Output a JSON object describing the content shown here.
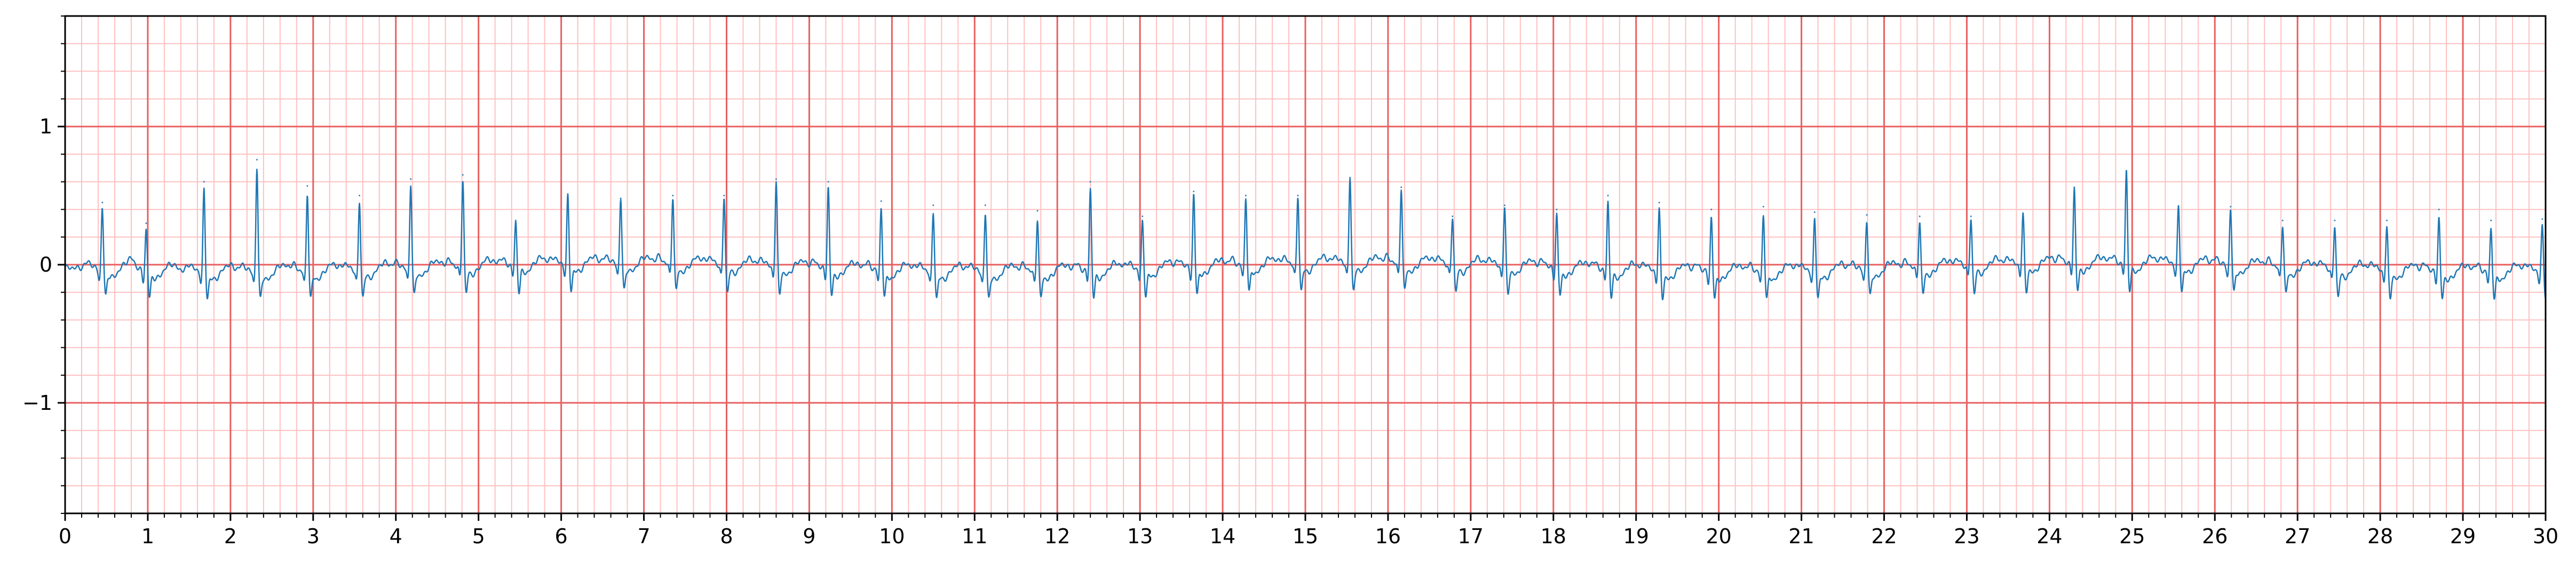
{
  "chart_data": {
    "type": "line",
    "title": "",
    "xlabel": "",
    "ylabel": "",
    "xlim": [
      0,
      30
    ],
    "ylim": [
      -1.8,
      1.8
    ],
    "grid": true,
    "legend": "none",
    "x_ticks": [
      0,
      1,
      2,
      3,
      4,
      5,
      6,
      7,
      8,
      9,
      10,
      11,
      12,
      13,
      14,
      15,
      16,
      17,
      18,
      19,
      20,
      21,
      22,
      23,
      24,
      25,
      26,
      27,
      28,
      29,
      30
    ],
    "x_tick_labels": [
      "0",
      "1",
      "2",
      "3",
      "4",
      "5",
      "6",
      "7",
      "8",
      "9",
      "10",
      "11",
      "12",
      "13",
      "14",
      "15",
      "16",
      "17",
      "18",
      "19",
      "20",
      "21",
      "22",
      "23",
      "24",
      "25",
      "26",
      "27",
      "28",
      "29",
      "30"
    ],
    "y_ticks": [
      -1,
      0,
      1
    ],
    "y_tick_labels": [
      "−1",
      "0",
      "1"
    ],
    "major_grid_step": {
      "x": 1,
      "y": 1
    },
    "minor_grid_step": {
      "x": 0.2,
      "y": 0.2
    },
    "colors": {
      "trace": "#1f77b4",
      "major_grid": "#e86060",
      "minor_grid": "#ffc0c0"
    },
    "series": [
      {
        "x": [
          0.45,
          0.98,
          1.68,
          2.32,
          2.93,
          3.56,
          4.18,
          4.81,
          5.45,
          6.08,
          6.72,
          7.35,
          7.97,
          8.6,
          9.23,
          9.87,
          10.5,
          11.13,
          11.76,
          12.4,
          13.03,
          13.65,
          14.28,
          14.91,
          15.54,
          16.16,
          16.78,
          17.41,
          18.04,
          18.66,
          19.28,
          19.91,
          20.54,
          21.16,
          21.79,
          22.43,
          23.05,
          23.68,
          24.3,
          24.93,
          25.56,
          26.19,
          26.82,
          27.45,
          28.08,
          28.71,
          29.34,
          29.96
        ],
        "y": [
          0.45,
          0.3,
          0.6,
          0.76,
          0.57,
          0.5,
          0.62,
          0.65,
          0.32,
          0.5,
          0.48,
          0.5,
          0.5,
          0.62,
          0.6,
          0.46,
          0.43,
          0.43,
          0.39,
          0.6,
          0.35,
          0.53,
          0.5,
          0.5,
          0.63,
          0.56,
          0.35,
          0.43,
          0.4,
          0.5,
          0.45,
          0.4,
          0.42,
          0.38,
          0.36,
          0.35,
          0.35,
          0.37,
          0.56,
          0.68,
          0.42,
          0.42,
          0.32,
          0.32,
          0.32,
          0.4,
          0.32,
          0.33
        ]
      }
    ]
  }
}
